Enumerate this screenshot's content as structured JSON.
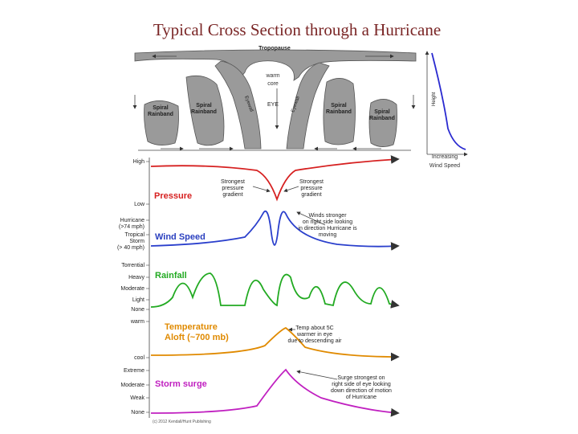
{
  "title": "Typical Cross Section through a Hurricane",
  "cross_section": {
    "tropopause": "Tropopause",
    "warm_core": [
      "warm",
      "core"
    ],
    "eye": "EYE",
    "eyewall_left": "Eyewall",
    "eyewall_right": "Eyewall",
    "rainbands": [
      [
        "Spiral",
        "Rainband"
      ],
      [
        "Spiral",
        "Rainband"
      ],
      [
        "Spiral",
        "Rainband"
      ],
      [
        "Spiral",
        "Rainband"
      ]
    ],
    "height": "Height",
    "wind_axis": [
      "Increasing",
      "Wind Speed"
    ]
  },
  "panels": [
    {
      "title": [
        "Pressure"
      ],
      "levels": [
        "High",
        "Low"
      ],
      "annotations": [
        [
          "Strongest",
          "pressure",
          "gradient"
        ],
        [
          "Strongest",
          "pressure",
          "gradient"
        ]
      ]
    },
    {
      "title": [
        "Wind Speed"
      ],
      "levels": [
        [
          "Hurricane",
          "(>74 mph)"
        ],
        [
          "Tropical",
          "Storm",
          "(> 40 mph)"
        ]
      ],
      "annotations": [
        [
          "Winds stronger",
          "on right side looking",
          "in direction Hurricane is",
          "moving"
        ]
      ]
    },
    {
      "title": [
        "Rainfall"
      ],
      "levels": [
        "Torrential",
        "Heavy",
        "Moderate",
        "Light",
        "None"
      ],
      "annotations": []
    },
    {
      "title": [
        "Temperature",
        "Aloft (~700 mb)"
      ],
      "levels": [
        "warm",
        "cool"
      ],
      "annotations": [
        [
          "Temp about 5C",
          "warmer in eye",
          "due to descending air"
        ]
      ]
    },
    {
      "title": [
        "Storm surge"
      ],
      "levels": [
        "Extreme",
        "Moderate",
        "Weak",
        "None"
      ],
      "annotations": [
        [
          "Surge strongest on",
          "right side of eye looking",
          "down direction of motion",
          "of Hurricane"
        ]
      ]
    }
  ],
  "credit": "(c) 2012 Kendall/Hunt Publishing"
}
